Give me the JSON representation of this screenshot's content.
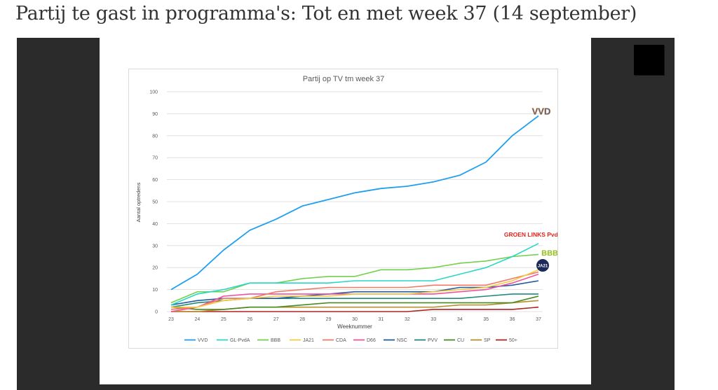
{
  "page": {
    "title": "Partij te gast in programma's: Tot en met week 37 (14 september)"
  },
  "colors": {
    "page_bg": "#ffffff",
    "frame": "#2b2b2b",
    "grid": "#d9d9d9"
  },
  "chart_data": {
    "type": "line",
    "title": "Partij op TV tm week 37",
    "xlabel": "Weeknummer",
    "ylabel": "Aantal optredens",
    "ylim": [
      0,
      100
    ],
    "yticks": [
      0,
      10,
      20,
      30,
      40,
      50,
      60,
      70,
      80,
      90,
      100
    ],
    "grid": true,
    "legend_position": "bottom",
    "x": [
      23,
      24,
      25,
      26,
      27,
      28,
      29,
      30,
      31,
      32,
      33,
      34,
      35,
      36,
      37
    ],
    "series": [
      {
        "name": "VVD",
        "color": "#1e9fef",
        "values": [
          10,
          17,
          28,
          37,
          42,
          48,
          51,
          54,
          56,
          57,
          59,
          62,
          68,
          80,
          89
        ]
      },
      {
        "name": "GL-PvdA",
        "color": "#2bd7c7",
        "values": [
          3,
          8,
          10,
          13,
          13,
          13,
          13,
          14,
          14,
          14,
          14,
          17,
          20,
          25,
          31
        ]
      },
      {
        "name": "BBB",
        "color": "#72d24f",
        "values": [
          4,
          9,
          9,
          13,
          13,
          15,
          16,
          16,
          19,
          19,
          20,
          22,
          23,
          25,
          26
        ]
      },
      {
        "name": "JA21",
        "color": "#f4cc44",
        "values": [
          2,
          2,
          5,
          6,
          7,
          7,
          7,
          8,
          8,
          8,
          9,
          10,
          11,
          14,
          19
        ]
      },
      {
        "name": "CDA",
        "color": "#ef7b67",
        "values": [
          1,
          2,
          6,
          6,
          9,
          10,
          11,
          11,
          11,
          11,
          12,
          12,
          12,
          15,
          18
        ]
      },
      {
        "name": "D66",
        "color": "#f0529b",
        "values": [
          0,
          2,
          7,
          8,
          8,
          8,
          8,
          8,
          8,
          8,
          8,
          9,
          10,
          13,
          17
        ]
      },
      {
        "name": "NSC",
        "color": "#235b9e",
        "values": [
          3,
          5,
          6,
          6,
          6,
          7,
          8,
          9,
          9,
          9,
          9,
          11,
          11,
          12,
          14
        ]
      },
      {
        "name": "PVV",
        "color": "#1f8a7c",
        "values": [
          2,
          4,
          5,
          6,
          6,
          6,
          6,
          6,
          6,
          6,
          6,
          6,
          7,
          8,
          8
        ]
      },
      {
        "name": "CU",
        "color": "#4a8a22",
        "values": [
          2,
          1,
          1,
          2,
          2,
          3,
          4,
          4,
          4,
          4,
          4,
          4,
          4,
          4,
          7
        ]
      },
      {
        "name": "SP",
        "color": "#b8902c",
        "values": [
          0,
          0,
          1,
          2,
          2,
          2,
          2,
          2,
          2,
          2,
          2,
          3,
          3,
          4,
          5
        ]
      },
      {
        "name": "50+",
        "color": "#b22222",
        "values": [
          0,
          0,
          0,
          0,
          0,
          0,
          0,
          0,
          0,
          0,
          1,
          1,
          1,
          1,
          2
        ]
      }
    ],
    "logos": [
      {
        "name": "vvd-logo",
        "text": "VVD",
        "color": "#1e5ec8"
      },
      {
        "name": "groenlinks-pvda-logo",
        "text": "GROEN LINKS PvdA",
        "color": "#e2231a"
      },
      {
        "name": "bbb-logo",
        "text": "BBB",
        "color": "#94c11f"
      },
      {
        "name": "ja21-logo",
        "text": "JA21",
        "color": "#1b2a5a"
      }
    ]
  }
}
